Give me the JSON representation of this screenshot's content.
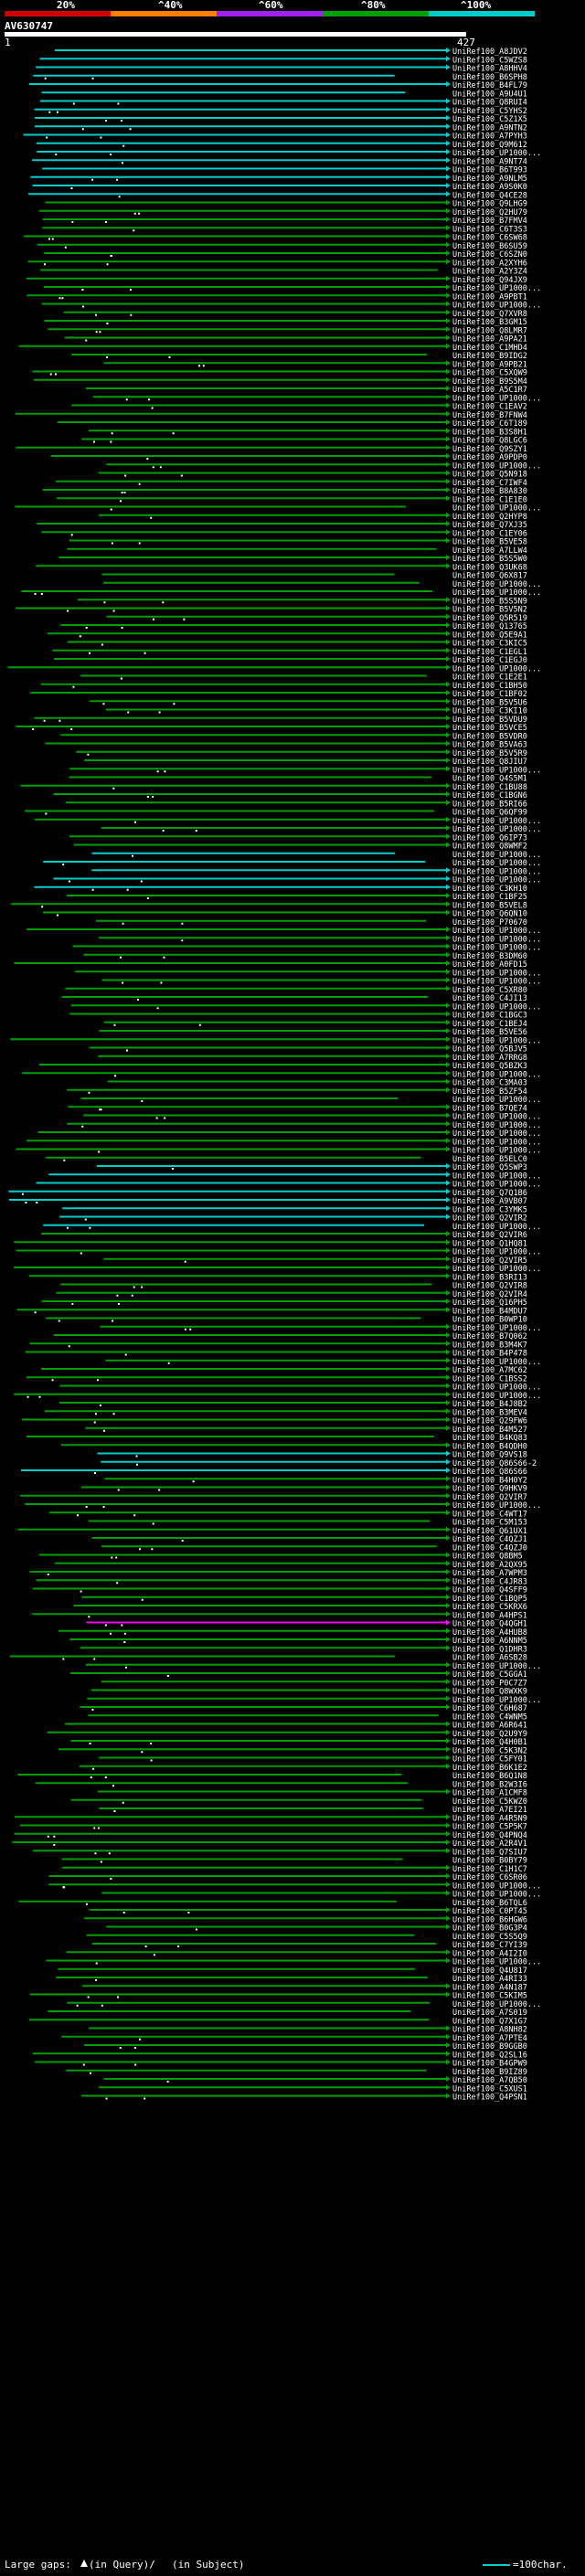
{
  "header": {
    "percent_labels": [
      "20%",
      "^40%",
      "^60%",
      "^80%",
      "^100%"
    ],
    "identity_colors": [
      "#d10000",
      "#ff8000",
      "#a020f0",
      "#00a000",
      "#00cccc"
    ],
    "query_id": "AV630747",
    "query_start": "1",
    "query_end": "427"
  },
  "legend": {
    "large_gaps_label": "Large gaps:",
    "in_query_label": "(in Query)/",
    "in_subject_label": "(in Subject)",
    "scale_label": "=100char."
  },
  "hits": [
    "UniRef100_A8JDV2",
    "UniRef100_C5WZS8",
    "UniRef100_A8HHV4",
    "UniRef100_B6SPH8",
    "UniRef100_B4FL79",
    "UniRef100_A9U4U1",
    "UniRef100_Q8RUI4",
    "UniRef100_C5YHS2",
    "UniRef100_C5Z1X5",
    "UniRef100_A9NTN2",
    "UniRef100_A7PYH3",
    "UniRef100_Q9M612",
    "UniRef100_UP1000...",
    "UniRef100_A9NT74",
    "UniRef100_B6T993",
    "UniRef100_A9NLM5",
    "UniRef100_A9S0K0",
    "UniRef100_Q4CE28",
    "UniRef100_Q9LHG9",
    "UniRef100_Q2HU79",
    "UniRef100_B7FMV4",
    "UniRef100_C6T3S3",
    "UniRef100_C6SW68",
    "UniRef100_B6SU59",
    "UniRef100_C6SZN0",
    "UniRef100_A2XYH6",
    "UniRef100_A2Y3Z4",
    "UniRef100_Q94JX9",
    "UniRef100_UP1000...",
    "UniRef100_A9PBT1",
    "UniRef100_UP1000...",
    "UniRef100_Q7XVR8",
    "UniRef100_B3GM15",
    "UniRef100_Q8LMR7",
    "UniRef100_A9PA21",
    "UniRef100_C1MHD4",
    "UniRef100_B9IDG2",
    "UniRef100_A9PB21",
    "UniRef100_C5XQW9",
    "UniRef100_B9S5M4",
    "UniRef100_A5C1R7",
    "UniRef100_UP1000...",
    "UniRef100_C1EAV2",
    "UniRef100_B7FNW4",
    "UniRef100_C6T189",
    "UniRef100_B3S8H1",
    "UniRef100_Q8LGC6",
    "UniRef100_Q9SZY1",
    "UniRef100_A9PDP0",
    "UniRef100_UP1000...",
    "UniRef100_Q5N918",
    "UniRef100_C7IWF4",
    "UniRef100_B8A830",
    "UniRef100_C1E1E0",
    "UniRef100_UP1000...",
    "UniRef100_Q2HYP8",
    "UniRef100_Q7XJ35",
    "UniRef100_C1EY06",
    "UniRef100_B5VE58",
    "UniRef100_A7LLW4",
    "UniRef100_B5S5W0",
    "UniRef100_Q3UK68",
    "UniRef100_Q6X817",
    "UniRef100_UP1000...",
    "UniRef100_UP1000...",
    "UniRef100_B5S5N9",
    "UniRef100_B5V5N2",
    "UniRef100_Q5R519",
    "UniRef100_Q13765",
    "UniRef100_Q5E9A1",
    "UniRef100_C3KIC5",
    "UniRef100_C1EGL1",
    "UniRef100_C1EGJ0",
    "UniRef100_UP1000...",
    "UniRef100_C1E2E1",
    "UniRef100_C1BH50",
    "UniRef100_C1BF02",
    "UniRef100_B5V5U6",
    "UniRef100_C3KI10",
    "UniRef100_B5VDU9",
    "UniRef100_B5VCE5",
    "UniRef100_B5VDR0",
    "UniRef100_B5VA63",
    "UniRef100_B5V5R9",
    "UniRef100_Q8JIU7",
    "UniRef100_UP1000...",
    "UniRef100_Q4S5M1",
    "UniRef100_C1BU88",
    "UniRef100_C1BGN6",
    "UniRef100_B5RI66",
    "UniRef100_Q6QF99",
    "UniRef100_UP1000...",
    "UniRef100_UP1000...",
    "UniRef100_Q6IP73",
    "UniRef100_Q8WMF2",
    "UniRef100_UP1000...",
    "UniRef100_UP1000...",
    "UniRef100_UP1000...",
    "UniRef100_UP1000...",
    "UniRef100_C3KH10",
    "UniRef100_C1BF25",
    "UniRef100_B5VEL8",
    "UniRef100_Q6QN10",
    "UniRef100_P70670",
    "UniRef100_UP1000...",
    "UniRef100_UP1000...",
    "UniRef100_UP1000...",
    "UniRef100_B3DM60",
    "UniRef100_A0FD15",
    "UniRef100_UP1000...",
    "UniRef100_UP1000...",
    "UniRef100_C5XR80",
    "UniRef100_C4JI13",
    "UniRef100_UP1000...",
    "UniRef100_C1BGC3",
    "UniRef100_C1BEJ4",
    "UniRef100_B5VE56",
    "UniRef100_UP1000...",
    "UniRef100_Q5BJV5",
    "UniRef100_A7RRG8",
    "UniRef100_Q5BZK3",
    "UniRef100_UP1000...",
    "UniRef100_C3MA03",
    "UniRef100_B5ZF54",
    "UniRef100_UP1000...",
    "UniRef100_B7QE74",
    "UniRef100_UP1000...",
    "UniRef100_UP1000...",
    "UniRef100_UP1000...",
    "UniRef100_UP1000...",
    "UniRef100_UP1000...",
    "UniRef100_B5ELC0",
    "UniRef100_Q5SWP3",
    "UniRef100_UP1000...",
    "UniRef100_UP1000...",
    "UniRef100_Q7Q1B6",
    "UniRef100_A9VB07",
    "UniRef100_C3YMK5",
    "UniRef100_Q2VIR2",
    "UniRef100_UP1000...",
    "UniRef100_Q2VIR6",
    "UniRef100_Q1HQ81",
    "UniRef100_UP1000...",
    "UniRef100_Q2VIR5",
    "UniRef100_UP1000...",
    "UniRef100_B3RI13",
    "UniRef100_Q2VIR8",
    "UniRef100_Q2VIR4",
    "UniRef100_Q16PH5",
    "UniRef100_B4MDU7",
    "UniRef100_B0WP10",
    "UniRef100_UP1000...",
    "UniRef100_B7Q062",
    "UniRef100_B3M4K7",
    "UniRef100_B4P478",
    "UniRef100_UP1000...",
    "UniRef100_A7MC62",
    "UniRef100_C1BSS2",
    "UniRef100_UP1000...",
    "UniRef100_UP1000...",
    "UniRef100_B4J8B2",
    "UniRef100_B3MEV4",
    "UniRef100_Q29FW6",
    "UniRef100_B4M527",
    "UniRef100_B4KQ83",
    "UniRef100_B4QDH0",
    "UniRef100_Q9VS18",
    "UniRef100_Q86S66-2",
    "UniRef100_Q86S66",
    "UniRef100_B4H0Y2",
    "UniRef100_Q9HKV9",
    "UniRef100_Q2VIR7",
    "UniRef100_UP1000...",
    "UniRef100_C4WT17",
    "UniRef100_C5M153",
    "UniRef100_Q61UX1",
    "UniRef100_C4QZJ1",
    "UniRef100_C4QZJ0",
    "UniRef100_Q8BM5",
    "UniRef100_A2QX95",
    "UniRef100_A7WPM3",
    "UniRef100_C4JR83",
    "UniRef100_Q4SFF9",
    "UniRef100_C1BQP5",
    "UniRef100_C5KRX6",
    "UniRef100_A4HPS1",
    "UniRef100_Q4QGH1",
    "UniRef100_A4HUB8",
    "UniRef100_A6NNM5",
    "UniRef100_Q1DHR3",
    "UniRef100_A6SB28",
    "UniRef100_UP1000...",
    "UniRef100_C5GGA1",
    "UniRef100_P0C7Z7",
    "UniRef100_Q8WXK9",
    "UniRef100_UP1000...",
    "UniRef100_C6H687",
    "UniRef100_C4WNM5",
    "UniRef100_A6R641",
    "UniRef100_Q2U9Y9",
    "UniRef100_Q4H0B1",
    "UniRef100_C5K3N2",
    "UniRef100_C5FY01",
    "UniRef100_B6K1E2",
    "UniRef100_B6Q1N8",
    "UniRef100_B2W3I6",
    "UniRef100_A1CMF8",
    "UniRef100_C5KWZ0",
    "UniRef100_A7EI21",
    "UniRef100_A4R5N9",
    "UniRef100_C5P5K7",
    "UniRef100_Q4PNQ4",
    "UniRef100_A2R4V1",
    "UniRef100_Q7SIU7",
    "UniRef100_B0BY79",
    "UniRef100_C1H1C7",
    "UniRef100_C6SR06",
    "UniRef100_UP1000...",
    "UniRef100_UP1000...",
    "UniRef100_B6TQL6",
    "UniRef100_C0PT45",
    "UniRef100_B6HGW6",
    "UniRef100_B0G3P4",
    "UniRef100_C5S5Q9",
    "UniRef100_C7YI39",
    "UniRef100_A4I2I0",
    "UniRef100_UP1000...",
    "UniRef100_Q4U817",
    "UniRef100_A4RI33",
    "UniRef100_A4N187",
    "UniRef100_C5KIM5",
    "UniRef100_UP1000...",
    "UniRef100_A7S019",
    "UniRef100_Q7X1G7",
    "UniRef100_A8NH82",
    "UniRef100_A7PTE4",
    "UniRef100_B9GGB0",
    "UniRef100_Q2SL16",
    "UniRef100_B4GPW9",
    "UniRef100_B9IZ89",
    "UniRef100_A7QB50",
    "UniRef100_C5XUS1",
    "UniRef100_Q4PSN1"
  ]
}
